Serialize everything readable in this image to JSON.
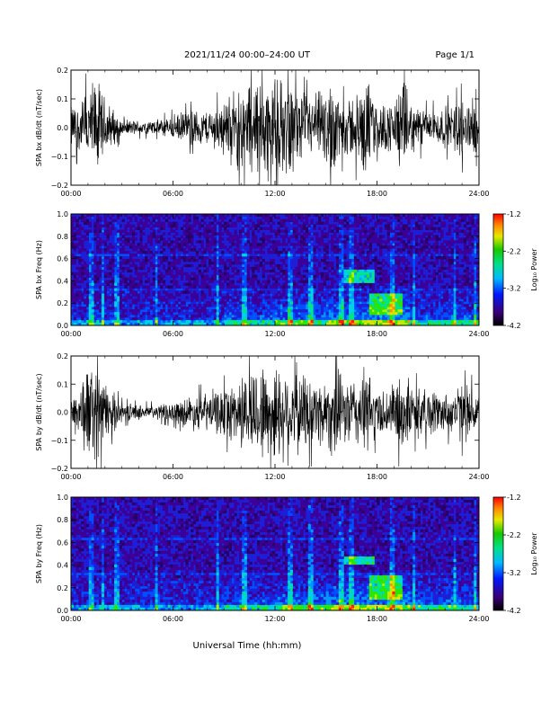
{
  "header": {
    "date_range": "2021/11/24  00:00–24:00 UT",
    "page": "Page 1/1"
  },
  "footer": {
    "xlabel": "Universal Time (hh:mm)"
  },
  "chart_data": [
    {
      "type": "line",
      "ylabel": "SPA bx dB/dt (nT/sec)",
      "xlim_hours": [
        0,
        24
      ],
      "ylim": [
        -0.2,
        0.2
      ],
      "x_ticks": [
        "00:00",
        "06:00",
        "12:00",
        "18:00",
        "24:00"
      ],
      "y_ticks": [
        "0.2",
        "0.1",
        "0.0",
        "−0.1",
        "−0.2"
      ],
      "envelope": {
        "hours": [
          0,
          0.5,
          1,
          1.5,
          2,
          3,
          4,
          5,
          6,
          7,
          8,
          9,
          10,
          11,
          12,
          13,
          14,
          15,
          15.5,
          16,
          17,
          17.5,
          18,
          19,
          19.5,
          20,
          21,
          22,
          23,
          24
        ],
        "amplitude": [
          0.09,
          0.1,
          0.16,
          0.2,
          0.12,
          0.03,
          0.03,
          0.03,
          0.05,
          0.07,
          0.07,
          0.11,
          0.18,
          0.2,
          0.2,
          0.18,
          0.12,
          0.16,
          0.2,
          0.11,
          0.15,
          0.2,
          0.09,
          0.11,
          0.2,
          0.1,
          0.07,
          0.08,
          0.12,
          0.1
        ]
      }
    },
    {
      "type": "heatmap",
      "ylabel": "SPA bx Freq (Hz)",
      "xlim_hours": [
        0,
        24
      ],
      "ylim": [
        0.0,
        1.0
      ],
      "x_ticks": [
        "00:00",
        "06:00",
        "12:00",
        "18:00",
        "24:00"
      ],
      "y_ticks": [
        "1.0",
        "0.8",
        "0.6",
        "0.4",
        "0.2",
        "0.0"
      ],
      "colorbar": {
        "label": "Log₁₀ Power",
        "range": [
          -4.2,
          -1.2
        ],
        "ticks": [
          "-1.2",
          "-2.2",
          "-3.2",
          "-4.2"
        ]
      },
      "features": [
        {
          "hours": [
            16,
            17.8
          ],
          "freq_hz": [
            0.38,
            0.5
          ]
        },
        {
          "hours": [
            17.5,
            19.5
          ],
          "freq_hz": [
            0.1,
            0.28
          ]
        }
      ]
    },
    {
      "type": "line",
      "ylabel": "SPA by dB/dt (nT/sec)",
      "xlim_hours": [
        0,
        24
      ],
      "ylim": [
        -0.2,
        0.2
      ],
      "x_ticks": [
        "00:00",
        "06:00",
        "12:00",
        "18:00",
        "24:00"
      ],
      "y_ticks": [
        "0.2",
        "0.1",
        "0.0",
        "−0.1",
        "−0.2"
      ],
      "envelope": {
        "hours": [
          0,
          0.5,
          1,
          1.5,
          2,
          3,
          4,
          5,
          6,
          7,
          8,
          9,
          10,
          11,
          12,
          13,
          14,
          15,
          15.5,
          16,
          17,
          17.5,
          18,
          19,
          19.5,
          20,
          21,
          22,
          23,
          24
        ],
        "amplitude": [
          0.07,
          0.12,
          0.2,
          0.2,
          0.12,
          0.04,
          0.03,
          0.03,
          0.04,
          0.07,
          0.08,
          0.1,
          0.15,
          0.2,
          0.2,
          0.2,
          0.15,
          0.14,
          0.2,
          0.13,
          0.16,
          0.18,
          0.09,
          0.12,
          0.17,
          0.11,
          0.1,
          0.08,
          0.12,
          0.09
        ]
      }
    },
    {
      "type": "heatmap",
      "ylabel": "SPA by Freq (Hz)",
      "xlim_hours": [
        0,
        24
      ],
      "ylim": [
        0.0,
        1.0
      ],
      "x_ticks": [
        "00:00",
        "06:00",
        "12:00",
        "18:00",
        "24:00"
      ],
      "y_ticks": [
        "1.0",
        "0.8",
        "0.6",
        "0.4",
        "0.2",
        "0.0"
      ],
      "colorbar": {
        "label": "Log₁₀ Power",
        "range": [
          -4.2,
          -1.2
        ],
        "ticks": [
          "-1.2",
          "-2.2",
          "-3.2",
          "-4.2"
        ]
      },
      "features": [
        {
          "hours": [
            16,
            17.8
          ],
          "freq_hz": [
            0.4,
            0.48
          ]
        },
        {
          "hours": [
            17.5,
            19.5
          ],
          "freq_hz": [
            0.1,
            0.3
          ]
        }
      ]
    }
  ]
}
